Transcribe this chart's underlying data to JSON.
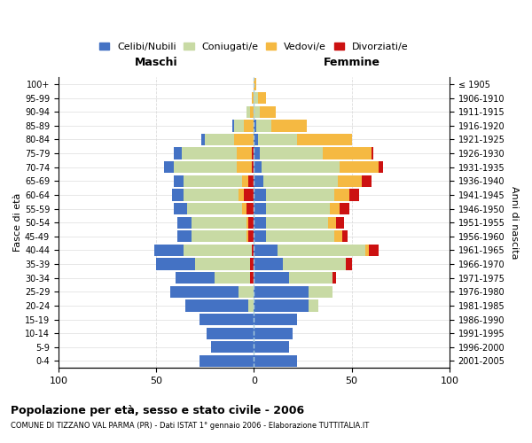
{
  "age_groups": [
    "0-4",
    "5-9",
    "10-14",
    "15-19",
    "20-24",
    "25-29",
    "30-34",
    "35-39",
    "40-44",
    "45-49",
    "50-54",
    "55-59",
    "60-64",
    "65-69",
    "70-74",
    "75-79",
    "80-84",
    "85-89",
    "90-94",
    "95-99",
    "100+"
  ],
  "birth_years": [
    "2001-2005",
    "1996-2000",
    "1991-1995",
    "1986-1990",
    "1981-1985",
    "1976-1980",
    "1971-1975",
    "1966-1970",
    "1961-1965",
    "1956-1960",
    "1951-1955",
    "1946-1950",
    "1941-1945",
    "1936-1940",
    "1931-1935",
    "1926-1930",
    "1921-1925",
    "1916-1920",
    "1911-1915",
    "1906-1910",
    "≤ 1905"
  ],
  "colors": {
    "celibi": "#4472c4",
    "coniugati": "#c8daa4",
    "vedovi": "#f5b942",
    "divorziati": "#cc1111"
  },
  "males": {
    "celibi": [
      28,
      22,
      24,
      28,
      32,
      35,
      20,
      20,
      15,
      7,
      7,
      7,
      6,
      5,
      5,
      4,
      2,
      1,
      0,
      0,
      0
    ],
    "coniugati": [
      0,
      0,
      0,
      0,
      3,
      8,
      18,
      28,
      35,
      28,
      28,
      28,
      28,
      30,
      32,
      28,
      15,
      5,
      2,
      0,
      0
    ],
    "vedovi": [
      0,
      0,
      0,
      0,
      0,
      0,
      0,
      0,
      0,
      1,
      1,
      2,
      3,
      3,
      8,
      8,
      10,
      5,
      2,
      1,
      0
    ],
    "divorziati": [
      0,
      0,
      0,
      0,
      0,
      0,
      2,
      2,
      1,
      3,
      3,
      4,
      5,
      3,
      1,
      1,
      0,
      0,
      0,
      0,
      0
    ]
  },
  "females": {
    "nubili": [
      22,
      18,
      20,
      22,
      28,
      28,
      18,
      15,
      12,
      6,
      6,
      6,
      6,
      5,
      4,
      3,
      2,
      1,
      0,
      0,
      0
    ],
    "coniugate": [
      0,
      0,
      0,
      0,
      5,
      12,
      22,
      32,
      45,
      35,
      32,
      33,
      35,
      38,
      40,
      32,
      20,
      8,
      3,
      2,
      0
    ],
    "vedove": [
      0,
      0,
      0,
      0,
      0,
      0,
      0,
      0,
      2,
      4,
      4,
      5,
      8,
      12,
      20,
      25,
      28,
      18,
      8,
      4,
      1
    ],
    "divorziate": [
      0,
      0,
      0,
      0,
      0,
      0,
      2,
      3,
      5,
      3,
      4,
      5,
      5,
      5,
      2,
      1,
      0,
      0,
      0,
      0,
      0
    ]
  },
  "xlim": 100,
  "title": "Popolazione per età, sesso e stato civile - 2006",
  "subtitle": "COMUNE DI TIZZANO VAL PARMA (PR) - Dati ISTAT 1° gennaio 2006 - Elaborazione TUTTITALIA.IT",
  "xlabel_left": "Maschi",
  "xlabel_right": "Femmine",
  "ylabel_left": "Fasce di età",
  "ylabel_right": "Anni di nascita",
  "legend_labels": [
    "Celibi/Nubili",
    "Coniugati/e",
    "Vedovi/e",
    "Divorziati/e"
  ],
  "bg_color": "#ffffff",
  "grid_color": "#cccccc",
  "bar_height": 0.85
}
